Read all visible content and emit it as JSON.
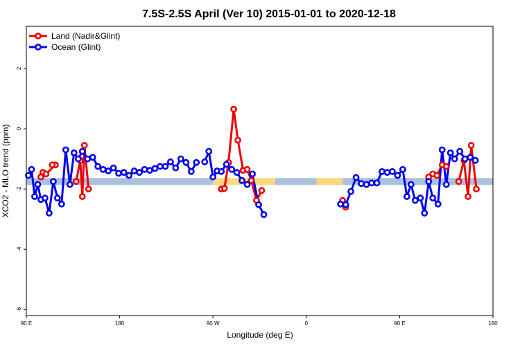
{
  "chart_data": {
    "type": "line",
    "title": "7.5S-2.5S April (Ver 10)   2015-01-01 to 2020-12-18",
    "xlabel": "Longitude (deg E)",
    "ylabel": "XCO2 - MLO trend (ppm)",
    "xlim": [
      90,
      540
    ],
    "ylim": [
      -6.2,
      3.4
    ],
    "x_ticks": [
      {
        "value": 90,
        "label": "90 E"
      },
      {
        "value": 180,
        "label": "180"
      },
      {
        "value": 270,
        "label": "90 W"
      },
      {
        "value": 360,
        "label": "0"
      },
      {
        "value": 450,
        "label": "90 E"
      },
      {
        "value": 540,
        "label": "180"
      }
    ],
    "y_ticks": [
      {
        "value": 2,
        "label": "2"
      },
      {
        "value": 0,
        "label": "0"
      },
      {
        "value": -2,
        "label": "-2"
      },
      {
        "value": -4,
        "label": "-4"
      },
      {
        "value": -6,
        "label": "-6"
      }
    ],
    "legend_position": "top-left",
    "band": {
      "y": -1.75,
      "segments": [
        {
          "x0": 90,
          "x1": 270,
          "color": "#a9c0de"
        },
        {
          "x0": 270,
          "x1": 330,
          "color": "#fbd97c"
        },
        {
          "x0": 330,
          "x1": 370,
          "color": "#a9c0de"
        },
        {
          "x0": 370,
          "x1": 395,
          "color": "#fbd97c"
        },
        {
          "x0": 395,
          "x1": 540,
          "color": "#a9c0de"
        }
      ]
    },
    "series": [
      {
        "name": "Land (Nadir&Glint)",
        "color": "#ee0000",
        "segments": [
          [
            [
              104,
              -1.6
            ],
            [
              106,
              -1.45
            ],
            [
              109,
              -1.5
            ],
            [
              118,
              -1.2
            ],
            [
              115,
              -1.2
            ]
          ],
          [
            [
              138,
              -1.75
            ],
            [
              142,
              -1.05
            ],
            [
              144,
              -2.25
            ],
            [
              146,
              -0.55
            ],
            [
              150,
              -2.0
            ]
          ],
          [
            [
              278,
              -2.0
            ],
            [
              281,
              -1.98
            ],
            [
              285,
              -1.12
            ],
            [
              290,
              0.65
            ],
            [
              294,
              -0.38
            ],
            [
              299,
              -1.38
            ],
            [
              303,
              -1.35
            ],
            [
              307,
              -1.72
            ],
            [
              312,
              -2.38
            ],
            [
              317,
              -2.05
            ]
          ],
          [
            [
              395,
              -2.38
            ],
            [
              398,
              -2.6
            ]
          ],
          [
            [
              478,
              -1.6
            ],
            [
              482,
              -1.5
            ],
            [
              486,
              -1.55
            ],
            [
              491,
              -1.2
            ],
            [
              495,
              -1.25
            ]
          ],
          [
            [
              507,
              -1.75
            ],
            [
              512,
              -1.05
            ],
            [
              516,
              -2.25
            ],
            [
              519,
              -0.55
            ],
            [
              524,
              -2.0
            ]
          ]
        ]
      },
      {
        "name": "Ocean (Glint)",
        "color": "#0000ee",
        "segments": [
          [
            [
              92,
              -1.55
            ],
            [
              95,
              -1.35
            ],
            [
              98,
              -2.25
            ],
            [
              101,
              -1.85
            ],
            [
              104,
              -2.35
            ],
            [
              108,
              -2.3
            ],
            [
              112,
              -2.8
            ],
            [
              116,
              -1.75
            ],
            [
              120,
              -2.3
            ],
            [
              124,
              -2.5
            ],
            [
              128,
              -0.7
            ],
            [
              132,
              -1.85
            ],
            [
              136,
              -0.8
            ],
            [
              140,
              -1.0
            ],
            [
              144,
              -0.75
            ],
            [
              149,
              -1.0
            ],
            [
              154,
              -0.95
            ],
            [
              159,
              -1.25
            ],
            [
              164,
              -1.35
            ],
            [
              169,
              -1.4
            ],
            [
              174,
              -1.3
            ],
            [
              179,
              -1.48
            ],
            [
              184,
              -1.45
            ],
            [
              189,
              -1.55
            ],
            [
              194,
              -1.4
            ],
            [
              199,
              -1.45
            ],
            [
              204,
              -1.35
            ],
            [
              209,
              -1.38
            ],
            [
              214,
              -1.32
            ],
            [
              219,
              -1.25
            ],
            [
              224,
              -1.25
            ],
            [
              229,
              -1.1
            ],
            [
              234,
              -1.3
            ],
            [
              239,
              -1.0
            ],
            [
              244,
              -1.12
            ],
            [
              249,
              -1.42
            ],
            [
              254,
              -1.12
            ]
          ],
          [
            [
              262,
              -1.1
            ],
            [
              266,
              -0.75
            ],
            [
              270,
              -1.6
            ],
            [
              274,
              -1.4
            ],
            [
              278,
              -1.42
            ],
            [
              283,
              -1.18
            ],
            [
              288,
              -1.35
            ],
            [
              293,
              -1.45
            ],
            [
              298,
              -1.72
            ],
            [
              303,
              -1.85
            ],
            [
              308,
              -1.5
            ],
            [
              314,
              -2.52
            ],
            [
              319,
              -2.85
            ]
          ],
          [
            [
              393,
              -2.5
            ],
            [
              398,
              -2.52
            ],
            [
              403,
              -2.08
            ],
            [
              408,
              -1.62
            ],
            [
              413,
              -1.82
            ],
            [
              418,
              -1.85
            ],
            [
              423,
              -1.8
            ],
            [
              428,
              -1.8
            ],
            [
              433,
              -1.42
            ],
            [
              438,
              -1.45
            ],
            [
              443,
              -1.42
            ],
            [
              448,
              -1.55
            ],
            [
              453,
              -1.35
            ],
            [
              457,
              -2.25
            ],
            [
              461,
              -1.85
            ],
            [
              465,
              -2.38
            ],
            [
              470,
              -2.3
            ],
            [
              474,
              -2.8
            ],
            [
              478,
              -1.75
            ],
            [
              482,
              -2.3
            ],
            [
              487,
              -2.5
            ],
            [
              491,
              -0.7
            ],
            [
              495,
              -1.85
            ],
            [
              499,
              -0.8
            ],
            [
              503,
              -1.0
            ],
            [
              508,
              -0.75
            ],
            [
              513,
              -1.0
            ],
            [
              518,
              -0.95
            ],
            [
              523,
              -1.05
            ]
          ]
        ]
      }
    ]
  }
}
